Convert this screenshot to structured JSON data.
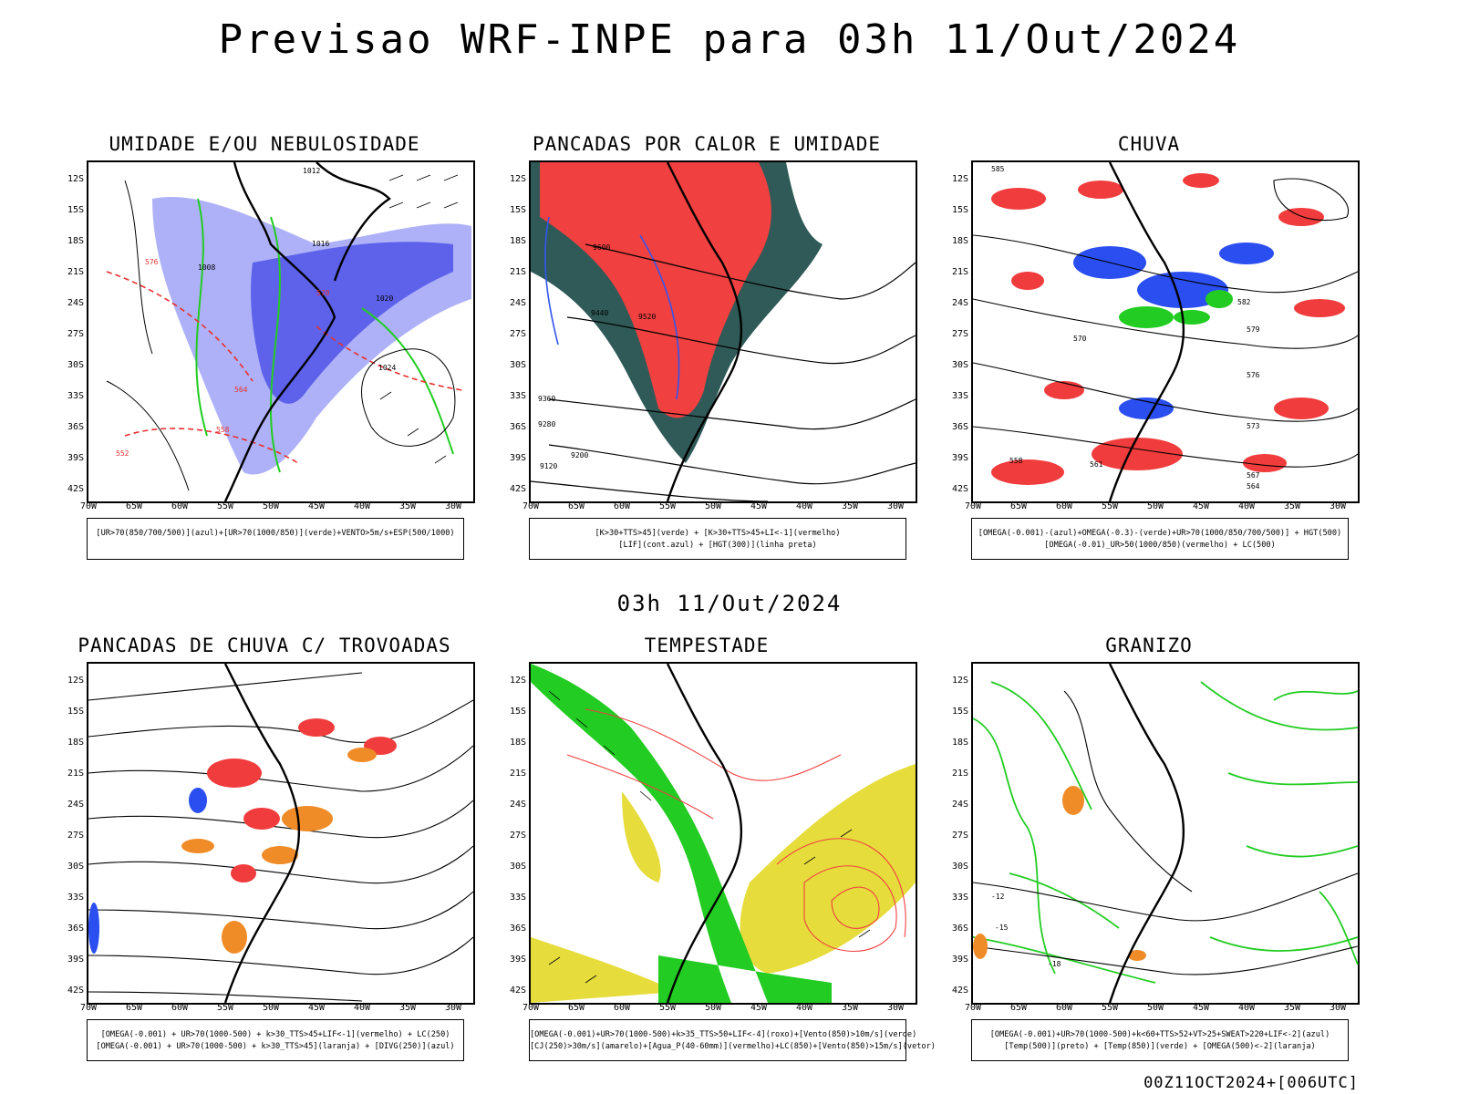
{
  "title": "Previsao WRF-INPE  para 03h 11/Out/2024",
  "subtitle": "03h 11/Out/2024",
  "footer": "00Z11OCT2024+[006UTC]",
  "axes": {
    "lat": [
      "12S",
      "15S",
      "18S",
      "21S",
      "24S",
      "27S",
      "30S",
      "33S",
      "36S",
      "39S",
      "42S"
    ],
    "lon": [
      "70W",
      "65W",
      "60W",
      "55W",
      "50W",
      "45W",
      "40W",
      "35W",
      "30W"
    ]
  },
  "panels": [
    {
      "title": "UMIDADE E/OU NEBULOSIDADE",
      "legend": [
        "[UR>70(850/700/500)](azul)+[UR>70(1000/850)](verde)+VENTO>5m/s+ESP(500/1000)"
      ],
      "labels": [
        "1012",
        "1008",
        "1016",
        "1020",
        "1024",
        "576",
        "570",
        "564",
        "558",
        "552"
      ],
      "colors": {
        "shade": "#6a6ff0",
        "contour": "#22cc22",
        "dashed": "#e83030"
      }
    },
    {
      "title": "PANCADAS POR CALOR E UMIDADE",
      "legend": [
        "[K>30+TTS>45](verde) + [K>30+TTS>45+LI<-1](vermelho)",
        "[LIF](cont.azul) + [HGT(300)](linha preta)"
      ],
      "labels": [
        "9600",
        "9520",
        "9440",
        "9360",
        "9280",
        "9200",
        "9120"
      ],
      "colors": {
        "shade": "#2f5a58",
        "red": "#f04040",
        "blue": "#3355ee"
      }
    },
    {
      "title": "CHUVA",
      "legend": [
        "[OMEGA(-0.001)-(azul)+OMEGA(-0.3)-(verde)+UR>70(1000/850/700/500)] + HGT(500)",
        "[OMEGA(-0.01)_UR>50(1000/850)(vermelho) + LC(500)"
      ],
      "labels": [
        "585",
        "582",
        "579",
        "576",
        "573",
        "570",
        "567",
        "564",
        "561",
        "558"
      ],
      "colors": {
        "red": "#f03c3c",
        "blue": "#2a4ef0",
        "green": "#22cc22"
      }
    },
    {
      "title": "PANCADAS DE CHUVA C/ TROVOADAS",
      "legend": [
        "[OMEGA(-0.001) + UR>70(1000-500) + k>30_TTS>45+LIF<-1](vermelho) + LC(250)",
        "[OMEGA(-0.001) + UR>70(1000-500) + k>30_TTS>45](laranja) + [DIVG(250)](azul)"
      ],
      "labels": [],
      "colors": {
        "red": "#f03c3c",
        "orange": "#f08c28",
        "blue": "#2a4ef0"
      }
    },
    {
      "title": "TEMPESTADE",
      "legend": [
        "[OMEGA(-0.001)+UR>70(1000-500)+k>35_TTS>50+LIF<-4](roxo)+[Vento(850)>10m/s](verde)",
        "[CJ(250)>30m/s](amarelo)+[Agua_P(40-60mm)](vermelho)+LC(850)+[Vento(850)>15m/s](vetor)"
      ],
      "labels": [],
      "colors": {
        "yellow": "#e6dc3c",
        "green": "#22cc22",
        "red": "#f04040"
      }
    },
    {
      "title": "GRANIZO",
      "legend": [
        "[OMEGA(-0.001)+UR>70(1000-500)+k<60+TTS>52+VT>25+SWEAT>220+LIF<-2](azul)",
        "[Temp(500)](preto) + [Temp(850)](verde) + [OMEGA(500)<-2](laranja)"
      ],
      "labels": [
        "-12",
        "-15",
        "-18"
      ],
      "colors": {
        "green": "#22cc22",
        "orange": "#f08c28"
      }
    }
  ]
}
